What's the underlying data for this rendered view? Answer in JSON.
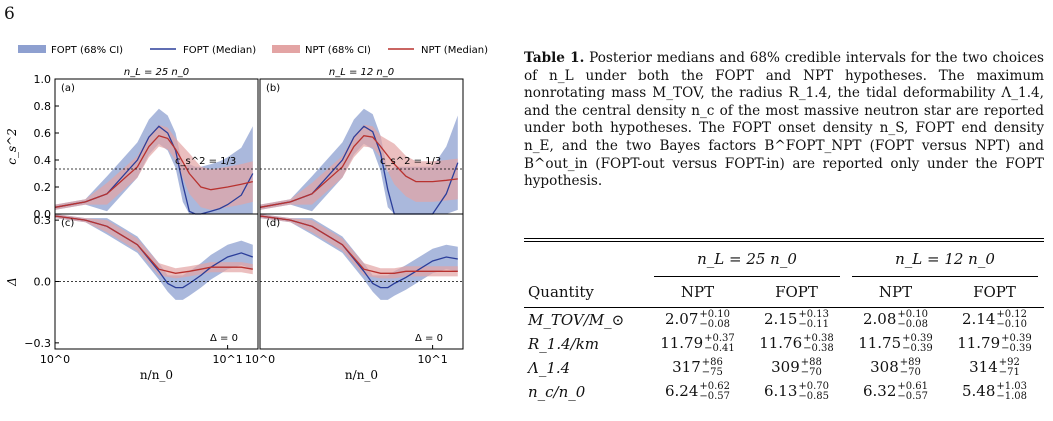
{
  "page_number": "6",
  "legend": [
    {
      "label": "FOPT  (68% CI)",
      "kind": "band",
      "color": "#8ea0d0"
    },
    {
      "label": "FOPT  (Median)",
      "kind": "line",
      "color": "#2b3e9a"
    },
    {
      "label": "NPT (68% CI)",
      "kind": "band",
      "color": "#e3a4a4"
    },
    {
      "label": "NPT (Median)",
      "kind": "line",
      "color": "#b8322f"
    }
  ],
  "panels": {
    "col_titles": [
      "n_L = 25 n_0",
      "n_L = 12 n_0"
    ],
    "letters": [
      "(a)",
      "(b)",
      "(c)",
      "(d)"
    ],
    "annot_cs": "c_s^2 = 1/3",
    "annot_delta": "Δ = 0",
    "ylabel_top": "c_s^2",
    "ylabel_bottom": "Δ",
    "xlabel": "n/n_0",
    "yticks_top": [
      "0.0",
      "0.2",
      "0.4",
      "0.6",
      "0.8",
      "1.0"
    ],
    "yticks_bottom": [
      "−0.3",
      "0.0",
      "0.3"
    ],
    "xticks": [
      "10^0",
      "10^1"
    ]
  },
  "chart_data": [
    {
      "type": "line",
      "panel": "a",
      "xscale": "log",
      "xlim": [
        1,
        15
      ],
      "ylim": [
        0,
        1
      ],
      "series": [
        {
          "name": "FOPT (Median)",
          "x": [
            1,
            1.5,
            2,
            3,
            3.5,
            4,
            4.5,
            5,
            5.5,
            6,
            6.5,
            7,
            8,
            9,
            10,
            12,
            14
          ],
          "y": [
            0.05,
            0.09,
            0.15,
            0.4,
            0.57,
            0.65,
            0.6,
            0.47,
            0.22,
            0.02,
            0.0,
            0.0,
            0.02,
            0.04,
            0.07,
            0.14,
            0.3
          ]
        },
        {
          "name": "NPT (Median)",
          "x": [
            1,
            1.5,
            2,
            3,
            3.5,
            4,
            4.5,
            5,
            6,
            7,
            8,
            10,
            12,
            14
          ],
          "y": [
            0.05,
            0.09,
            0.15,
            0.35,
            0.5,
            0.58,
            0.56,
            0.48,
            0.3,
            0.2,
            0.18,
            0.2,
            0.22,
            0.24
          ]
        }
      ]
    },
    {
      "type": "line",
      "panel": "b",
      "xscale": "log",
      "xlim": [
        1,
        15
      ],
      "ylim": [
        0,
        1
      ],
      "series": [
        {
          "name": "FOPT (Median)",
          "x": [
            1,
            1.5,
            2,
            3,
            3.5,
            4,
            4.5,
            5,
            5.5,
            6,
            7,
            8,
            10,
            12,
            14
          ],
          "y": [
            0.05,
            0.09,
            0.15,
            0.4,
            0.57,
            0.65,
            0.61,
            0.45,
            0.18,
            0.0,
            0.0,
            0.0,
            0.0,
            0.15,
            0.38
          ]
        },
        {
          "name": "NPT (Median)",
          "x": [
            1,
            1.5,
            2,
            3,
            3.5,
            4,
            4.5,
            5,
            6,
            7,
            8,
            10,
            12,
            14
          ],
          "y": [
            0.05,
            0.09,
            0.15,
            0.35,
            0.5,
            0.58,
            0.57,
            0.5,
            0.37,
            0.28,
            0.24,
            0.24,
            0.25,
            0.26
          ]
        }
      ]
    },
    {
      "type": "line",
      "panel": "c",
      "xscale": "log",
      "xlim": [
        1,
        15
      ],
      "ylim": [
        -0.33,
        0.33
      ],
      "series": [
        {
          "name": "FOPT (Median)",
          "x": [
            1,
            1.5,
            2,
            3,
            4,
            4.5,
            5,
            5.5,
            6,
            7,
            8,
            10,
            12,
            14
          ],
          "y": [
            0.32,
            0.3,
            0.27,
            0.18,
            0.05,
            -0.01,
            -0.03,
            -0.03,
            -0.01,
            0.03,
            0.07,
            0.12,
            0.14,
            0.12
          ]
        },
        {
          "name": "NPT (Median)",
          "x": [
            1,
            1.5,
            2,
            3,
            4,
            5,
            6,
            7,
            8,
            10,
            12,
            14
          ],
          "y": [
            0.32,
            0.3,
            0.27,
            0.18,
            0.06,
            0.04,
            0.05,
            0.06,
            0.07,
            0.07,
            0.07,
            0.06
          ]
        }
      ]
    },
    {
      "type": "line",
      "panel": "d",
      "xscale": "log",
      "xlim": [
        1,
        15
      ],
      "ylim": [
        -0.33,
        0.33
      ],
      "series": [
        {
          "name": "FOPT (Median)",
          "x": [
            1,
            1.5,
            2,
            3,
            4,
            4.5,
            5,
            5.5,
            6,
            7,
            8,
            10,
            12,
            14
          ],
          "y": [
            0.32,
            0.3,
            0.27,
            0.18,
            0.05,
            -0.01,
            -0.03,
            -0.03,
            -0.01,
            0.02,
            0.05,
            0.1,
            0.12,
            0.11
          ]
        },
        {
          "name": "NPT (Median)",
          "x": [
            1,
            1.5,
            2,
            3,
            4,
            5,
            6,
            7,
            8,
            10,
            12,
            14
          ],
          "y": [
            0.32,
            0.3,
            0.27,
            0.18,
            0.06,
            0.04,
            0.04,
            0.05,
            0.05,
            0.05,
            0.05,
            0.05
          ]
        }
      ]
    }
  ],
  "caption": {
    "label": "Table 1.",
    "text": "Posterior medians and 68% credible intervals for the two choices of n_L under both the FOPT and NPT hypotheses. The maximum nonrotating mass M_TOV, the radius R_1.4, the tidal deformability Λ_1.4, and the central density n_c of the most massive neutron star are reported under both hypotheses. The FOPT onset density n_S, FOPT end density n_E, and the two Bayes factors B^FOPT_NPT (FOPT versus NPT) and B^out_in (FOPT-out versus FOPT-in) are reported only under the FOPT hypothesis."
  },
  "table": {
    "groups": [
      "n_L = 25 n_0",
      "n_L = 12 n_0"
    ],
    "quantity_header": "Quantity",
    "col_headers": [
      "NPT",
      "FOPT",
      "NPT",
      "FOPT"
    ],
    "rows": [
      {
        "q": "M_TOV/M_⊙",
        "cells": [
          [
            "2.07",
            "+0.10",
            "−0.08"
          ],
          [
            "2.15",
            "+0.13",
            "−0.11"
          ],
          [
            "2.08",
            "+0.10",
            "−0.08"
          ],
          [
            "2.14",
            "+0.12",
            "−0.10"
          ]
        ]
      },
      {
        "q": "R_1.4/km",
        "cells": [
          [
            "11.79",
            "+0.37",
            "−0.41"
          ],
          [
            "11.76",
            "+0.38",
            "−0.38"
          ],
          [
            "11.75",
            "+0.39",
            "−0.39"
          ],
          [
            "11.79",
            "+0.39",
            "−0.39"
          ]
        ]
      },
      {
        "q": "Λ_1.4",
        "cells": [
          [
            "317",
            "+86",
            "−75"
          ],
          [
            "309",
            "+88",
            "−70"
          ],
          [
            "308",
            "+89",
            "−70"
          ],
          [
            "314",
            "+92",
            "−71"
          ]
        ]
      },
      {
        "q": "n_c/n_0",
        "cells": [
          [
            "6.24",
            "+0.62",
            "−0.57"
          ],
          [
            "6.13",
            "+0.70",
            "−0.85"
          ],
          [
            "6.32",
            "+0.61",
            "−0.57"
          ],
          [
            "5.48",
            "+1.03",
            "−1.08"
          ]
        ]
      }
    ]
  }
}
